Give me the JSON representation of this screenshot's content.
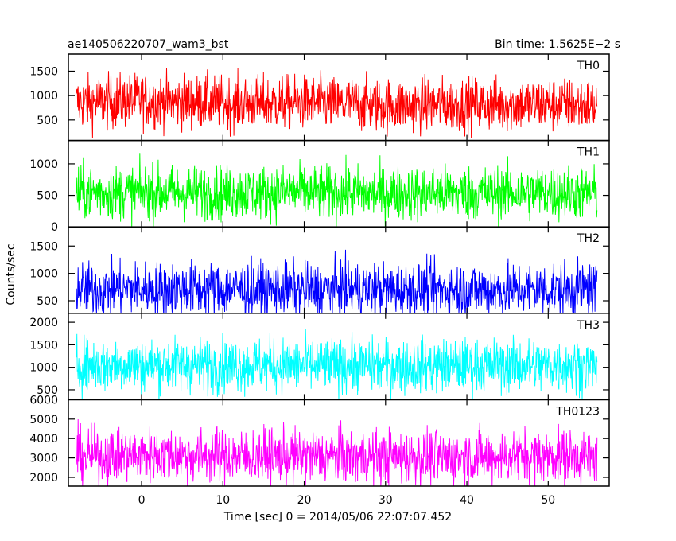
{
  "header": {
    "title": "ae140506220707_wam3_bst",
    "bin_time": "Bin time: 1.5625E−2 s"
  },
  "chart_data": {
    "type": "line",
    "style": "histogram",
    "grid": false,
    "shared_x": {
      "xlabel": "Time [sec] 0 = 2014/05/06 22:07:07.452",
      "xlim": [
        -9,
        57.5
      ],
      "ticks": [
        0,
        10,
        20,
        30,
        40,
        50
      ],
      "data_range": [
        -8,
        56
      ]
    },
    "ylabel": "Counts/sec",
    "panels": [
      {
        "name": "TH0",
        "color": "#ff0000",
        "ylim": [
          80,
          1850
        ],
        "yticks": [
          500,
          1000,
          1500
        ],
        "x": [
          -8,
          0,
          10,
          20,
          30,
          40,
          50,
          56
        ],
        "y": [
          850,
          900,
          850,
          850,
          800,
          820,
          820,
          800
        ]
      },
      {
        "name": "TH1",
        "color": "#00ff00",
        "ylim": [
          0,
          1370
        ],
        "yticks": [
          0,
          500,
          1000
        ],
        "x": [
          -8,
          0,
          10,
          20,
          30,
          40,
          50,
          56
        ],
        "y": [
          550,
          550,
          540,
          550,
          530,
          540,
          540,
          530
        ]
      },
      {
        "name": "TH2",
        "color": "#0000ff",
        "ylim": [
          270,
          1850
        ],
        "yticks": [
          500,
          1000,
          1500
        ],
        "x": [
          -8,
          0,
          10,
          20,
          30,
          40,
          50,
          56
        ],
        "y": [
          700,
          720,
          710,
          700,
          700,
          700,
          710,
          700
        ]
      },
      {
        "name": "TH3",
        "color": "#00ffff",
        "ylim": [
          280,
          2200
        ],
        "yticks": [
          500,
          1000,
          1500,
          2000
        ],
        "x": [
          -8,
          0,
          10,
          20,
          30,
          40,
          50,
          56
        ],
        "y": [
          1050,
          1050,
          1050,
          1040,
          1030,
          1030,
          1040,
          1030
        ]
      },
      {
        "name": "TH0123",
        "color": "#ff00ff",
        "ylim": [
          1550,
          6000
        ],
        "yticks": [
          2000,
          3000,
          4000,
          5000,
          6000
        ],
        "x": [
          -8,
          0,
          10,
          20,
          30,
          40,
          50,
          56
        ],
        "y": [
          3100,
          3150,
          3100,
          3100,
          3050,
          3050,
          3100,
          3050
        ]
      }
    ]
  }
}
